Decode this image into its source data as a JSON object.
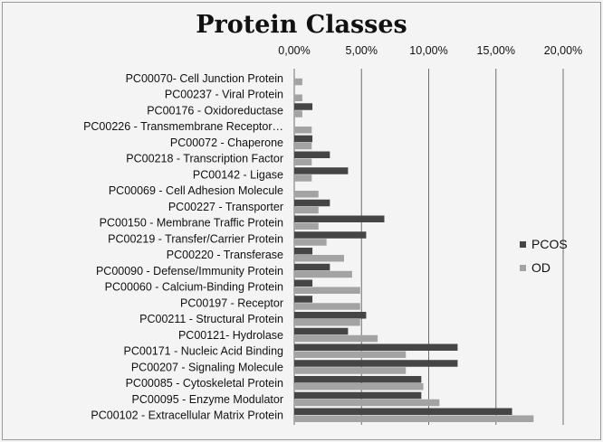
{
  "chart_data": {
    "type": "bar",
    "orientation": "horizontal",
    "title": "Protein Classes",
    "xlabel": "",
    "ylabel": "",
    "xlim": [
      0,
      20
    ],
    "x_ticks": [
      "0,00%",
      "5,00%",
      "10,00%",
      "15,00%",
      "20,00%"
    ],
    "x_axis_position": "top",
    "grid": true,
    "legend_position": "right",
    "categories": [
      "PC00070- Cell Junction Protein",
      "PC00237 - Viral Protein",
      "PC00176 - Oxidoreductase",
      "PC00226 - Transmembrane Receptor…",
      "PC00072 - Chaperone",
      "PC00218 - Transcription Factor",
      "PC00142 - Ligase",
      "PC00069 - Cell Adhesion Molecule",
      "PC00227 - Transporter",
      "PC00150 - Membrane Traffic Protein",
      "PC00219 - Transfer/Carrier Protein",
      "PC00220 - Transferase",
      "PC00090 - Defense/Immunity Protein",
      "PC00060 - Calcium-Binding Protein",
      "PC00197 - Receptor",
      "PC00211 - Structural Protein",
      "PC00121- Hydrolase",
      "PC00171 - Nucleic Acid Binding",
      "PC00207 - Signaling Molecule",
      "PC00085 - Cytoskeletal Protein",
      "PC00095 - Enzyme Modulator",
      "PC00102 - Extracellular Matrix Protein"
    ],
    "series": [
      {
        "name": "PCOS",
        "color": "#454545",
        "values": [
          0.0,
          0.0,
          1.35,
          0.0,
          1.35,
          2.65,
          4.0,
          0.0,
          2.65,
          6.7,
          5.35,
          1.35,
          2.65,
          1.35,
          1.35,
          5.35,
          4.0,
          12.15,
          12.15,
          9.45,
          9.45,
          16.2
        ]
      },
      {
        "name": "OD",
        "color": "#a3a3a3",
        "values": [
          0.6,
          0.6,
          0.6,
          1.3,
          1.3,
          1.3,
          1.3,
          1.8,
          1.8,
          1.8,
          2.4,
          3.7,
          4.3,
          4.9,
          4.9,
          4.9,
          6.2,
          8.3,
          8.3,
          9.6,
          10.8,
          17.8
        ]
      }
    ]
  }
}
